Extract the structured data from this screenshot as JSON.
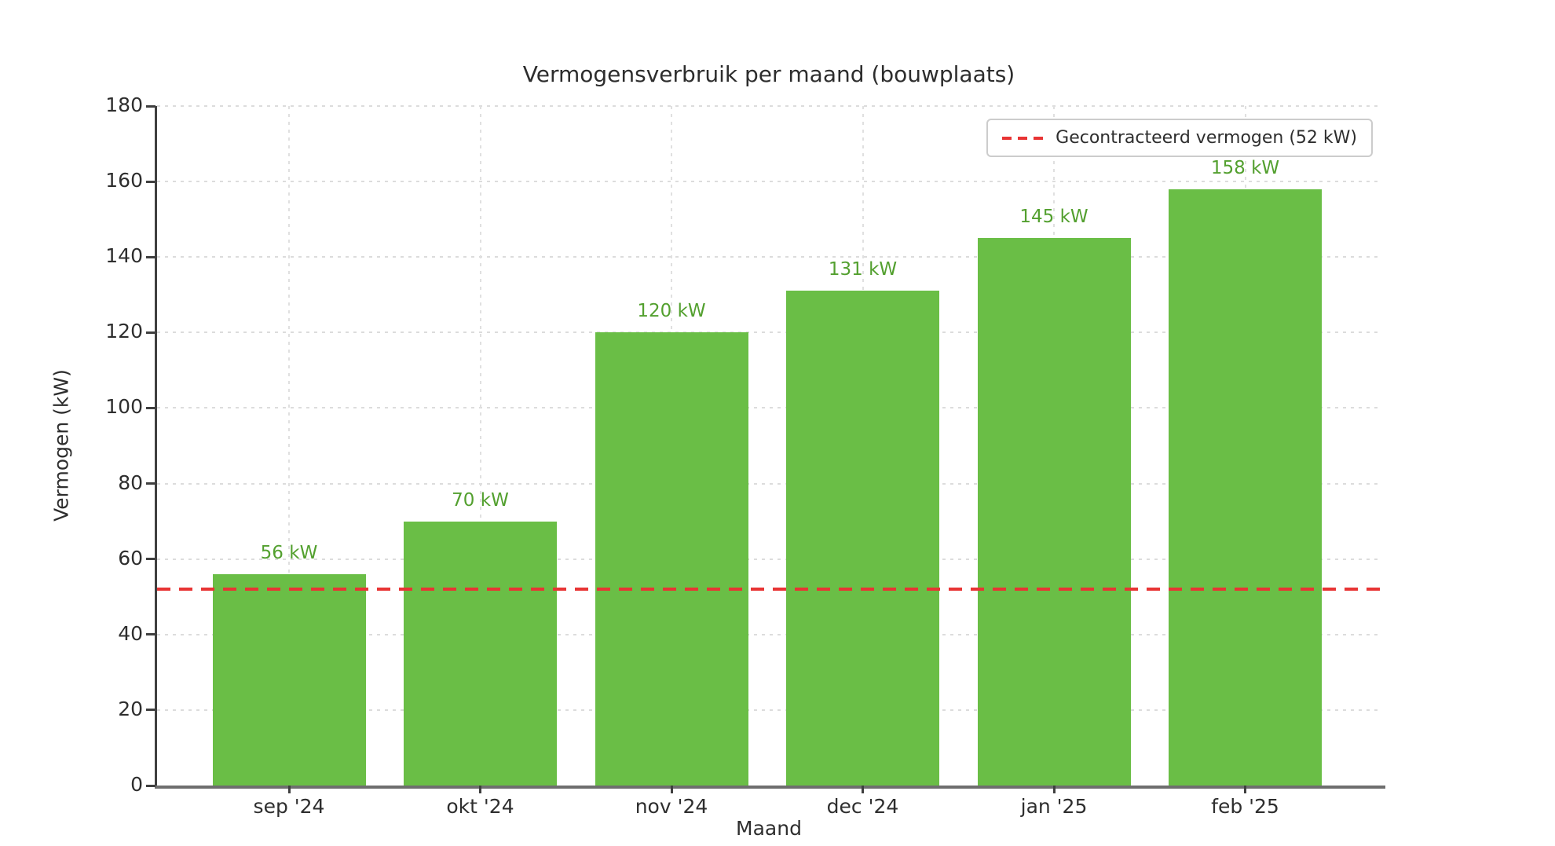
{
  "chart_data": {
    "type": "bar",
    "title": "Vermogensverbruik per maand (bouwplaats)",
    "xlabel": "Maand",
    "ylabel": "Vermogen (kW)",
    "categories": [
      "sep '24",
      "okt '24",
      "nov '24",
      "dec '24",
      "jan '25",
      "feb '25"
    ],
    "values": [
      56,
      70,
      120,
      131,
      145,
      158
    ],
    "bar_labels": [
      "56 kW",
      "70 kW",
      "120 kW",
      "131 kW",
      "145 kW",
      "158 kW"
    ],
    "ylim": [
      0,
      180
    ],
    "yticks": [
      0,
      20,
      40,
      60,
      80,
      100,
      120,
      140,
      160,
      180
    ],
    "grid": true,
    "legend_position": "top-right",
    "reference_line": {
      "value": 52,
      "label": "Gecontracteerd vermogen (52 kW)",
      "style": "dashed"
    },
    "colors": {
      "bar": "#6abe46",
      "bar_label": "#53a02f",
      "reference": "#e83434",
      "grid": "#dcdcdc",
      "axis": "#3f3f3f",
      "text": "#2e2e2e"
    }
  }
}
